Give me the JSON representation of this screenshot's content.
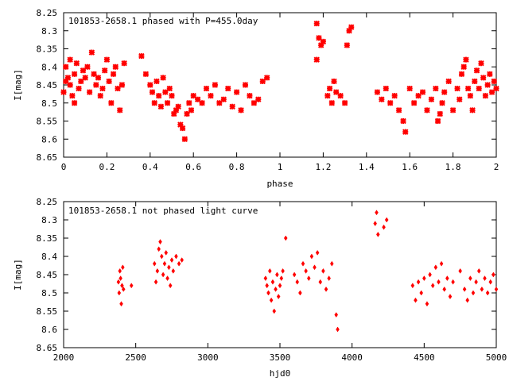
{
  "chart_data": [
    {
      "type": "scatter",
      "title": "101853-2658.1 phased with P=455.0day",
      "xlabel": "phase",
      "ylabel": "I[mag]",
      "xlim": [
        0,
        2
      ],
      "ylim": [
        8.25,
        8.65
      ],
      "y_inverted": true,
      "grid": false,
      "marker_color": "#ff0000",
      "x_ticks": [
        0,
        0.2,
        0.4,
        0.6,
        0.8,
        1,
        1.2,
        1.4,
        1.6,
        1.8,
        2
      ],
      "x_tick_labels": [
        "0",
        "0.2",
        "0.4",
        "0.6",
        "0.8",
        "1",
        "1.2",
        "1.4",
        "1.6",
        "1.8",
        "2"
      ],
      "y_ticks": [
        8.25,
        8.3,
        8.35,
        8.4,
        8.45,
        8.5,
        8.55,
        8.6,
        8.65
      ],
      "y_tick_labels": [
        "8.25",
        "8.3",
        "8.35",
        "8.4",
        "8.45",
        "8.5",
        "8.55",
        "8.6",
        "8.65"
      ],
      "series": [
        {
          "points": [
            [
              0.0,
              8.47
            ],
            [
              0.01,
              8.44
            ],
            [
              0.01,
              8.4
            ],
            [
              0.02,
              8.43
            ],
            [
              0.03,
              8.38
            ],
            [
              0.03,
              8.45
            ],
            [
              0.04,
              8.48
            ],
            [
              0.05,
              8.42
            ],
            [
              0.05,
              8.5
            ],
            [
              0.06,
              8.39
            ],
            [
              0.07,
              8.46
            ],
            [
              0.08,
              8.44
            ],
            [
              0.09,
              8.41
            ],
            [
              0.1,
              8.43
            ],
            [
              0.11,
              8.4
            ],
            [
              0.12,
              8.47
            ],
            [
              0.13,
              8.36
            ],
            [
              0.14,
              8.42
            ],
            [
              0.15,
              8.45
            ],
            [
              0.16,
              8.43
            ],
            [
              0.17,
              8.48
            ],
            [
              0.18,
              8.46
            ],
            [
              0.19,
              8.41
            ],
            [
              0.2,
              8.38
            ],
            [
              0.21,
              8.44
            ],
            [
              0.22,
              8.5
            ],
            [
              0.23,
              8.42
            ],
            [
              0.24,
              8.4
            ],
            [
              0.25,
              8.46
            ],
            [
              0.26,
              8.52
            ],
            [
              0.27,
              8.45
            ],
            [
              0.28,
              8.39
            ],
            [
              0.36,
              8.37
            ],
            [
              0.38,
              8.42
            ],
            [
              0.4,
              8.45
            ],
            [
              0.41,
              8.47
            ],
            [
              0.42,
              8.5
            ],
            [
              0.43,
              8.44
            ],
            [
              0.44,
              8.48
            ],
            [
              0.45,
              8.51
            ],
            [
              0.46,
              8.43
            ],
            [
              0.47,
              8.47
            ],
            [
              0.48,
              8.5
            ],
            [
              0.49,
              8.46
            ],
            [
              0.5,
              8.48
            ],
            [
              0.51,
              8.53
            ],
            [
              0.52,
              8.52
            ],
            [
              0.53,
              8.51
            ],
            [
              0.54,
              8.56
            ],
            [
              0.55,
              8.57
            ],
            [
              0.56,
              8.6
            ],
            [
              0.57,
              8.53
            ],
            [
              0.58,
              8.5
            ],
            [
              0.59,
              8.52
            ],
            [
              0.6,
              8.48
            ],
            [
              0.62,
              8.49
            ],
            [
              0.64,
              8.5
            ],
            [
              0.66,
              8.46
            ],
            [
              0.68,
              8.48
            ],
            [
              0.7,
              8.45
            ],
            [
              0.72,
              8.5
            ],
            [
              0.74,
              8.49
            ],
            [
              0.76,
              8.46
            ],
            [
              0.78,
              8.51
            ],
            [
              0.8,
              8.47
            ],
            [
              0.82,
              8.52
            ],
            [
              0.84,
              8.45
            ],
            [
              0.86,
              8.48
            ],
            [
              0.88,
              8.5
            ],
            [
              0.9,
              8.49
            ],
            [
              0.92,
              8.44
            ],
            [
              0.94,
              8.43
            ],
            [
              1.17,
              8.28
            ],
            [
              1.17,
              8.38
            ],
            [
              1.18,
              8.32
            ],
            [
              1.19,
              8.34
            ],
            [
              1.2,
              8.33
            ],
            [
              1.22,
              8.48
            ],
            [
              1.23,
              8.46
            ],
            [
              1.24,
              8.5
            ],
            [
              1.25,
              8.44
            ],
            [
              1.26,
              8.47
            ],
            [
              1.28,
              8.48
            ],
            [
              1.3,
              8.5
            ],
            [
              1.31,
              8.34
            ],
            [
              1.32,
              8.3
            ],
            [
              1.33,
              8.29
            ],
            [
              1.45,
              8.47
            ],
            [
              1.47,
              8.49
            ],
            [
              1.49,
              8.46
            ],
            [
              1.51,
              8.5
            ],
            [
              1.53,
              8.48
            ],
            [
              1.55,
              8.52
            ],
            [
              1.57,
              8.55
            ],
            [
              1.58,
              8.58
            ],
            [
              1.6,
              8.46
            ],
            [
              1.62,
              8.5
            ],
            [
              1.64,
              8.48
            ],
            [
              1.66,
              8.47
            ],
            [
              1.68,
              8.52
            ],
            [
              1.7,
              8.49
            ],
            [
              1.72,
              8.46
            ],
            [
              1.73,
              8.55
            ],
            [
              1.74,
              8.53
            ],
            [
              1.75,
              8.5
            ],
            [
              1.76,
              8.47
            ],
            [
              1.78,
              8.44
            ],
            [
              1.8,
              8.52
            ],
            [
              1.82,
              8.46
            ],
            [
              1.83,
              8.49
            ],
            [
              1.84,
              8.42
            ],
            [
              1.85,
              8.4
            ],
            [
              1.86,
              8.38
            ],
            [
              1.87,
              8.46
            ],
            [
              1.88,
              8.48
            ],
            [
              1.89,
              8.52
            ],
            [
              1.9,
              8.44
            ],
            [
              1.91,
              8.41
            ],
            [
              1.92,
              8.46
            ],
            [
              1.93,
              8.39
            ],
            [
              1.94,
              8.43
            ],
            [
              1.95,
              8.48
            ],
            [
              1.96,
              8.45
            ],
            [
              1.97,
              8.42
            ],
            [
              1.98,
              8.47
            ],
            [
              1.99,
              8.44
            ],
            [
              2.0,
              8.46
            ]
          ]
        }
      ]
    },
    {
      "type": "scatter",
      "title": "101853-2658.1 not phased light curve",
      "xlabel": "hjd0",
      "ylabel": "I[mag]",
      "xlim": [
        2000,
        5000
      ],
      "ylim": [
        8.25,
        8.65
      ],
      "y_inverted": true,
      "grid": false,
      "marker_color": "#ff0000",
      "x_ticks": [
        2000,
        2500,
        3000,
        3500,
        4000,
        4500,
        5000
      ],
      "x_tick_labels": [
        "2000",
        "2500",
        "3000",
        "3500",
        "4000",
        "4500",
        "5000"
      ],
      "y_ticks": [
        8.25,
        8.3,
        8.35,
        8.4,
        8.45,
        8.5,
        8.55,
        8.6,
        8.65
      ],
      "y_tick_labels": [
        "8.25",
        "8.3",
        "8.35",
        "8.4",
        "8.45",
        "8.5",
        "8.55",
        "8.6",
        "8.65"
      ],
      "series": [
        {
          "points": [
            [
              2380,
              8.47
            ],
            [
              2385,
              8.5
            ],
            [
              2390,
              8.44
            ],
            [
              2395,
              8.46
            ],
            [
              2400,
              8.53
            ],
            [
              2405,
              8.48
            ],
            [
              2410,
              8.43
            ],
            [
              2415,
              8.49
            ],
            [
              2470,
              8.48
            ],
            [
              2630,
              8.42
            ],
            [
              2640,
              8.47
            ],
            [
              2650,
              8.44
            ],
            [
              2660,
              8.38
            ],
            [
              2670,
              8.36
            ],
            [
              2680,
              8.4
            ],
            [
              2690,
              8.45
            ],
            [
              2700,
              8.42
            ],
            [
              2710,
              8.39
            ],
            [
              2720,
              8.46
            ],
            [
              2730,
              8.43
            ],
            [
              2740,
              8.48
            ],
            [
              2750,
              8.41
            ],
            [
              2760,
              8.44
            ],
            [
              2780,
              8.4
            ],
            [
              2800,
              8.42
            ],
            [
              2820,
              8.41
            ],
            [
              3400,
              8.46
            ],
            [
              3410,
              8.48
            ],
            [
              3420,
              8.5
            ],
            [
              3430,
              8.44
            ],
            [
              3440,
              8.52
            ],
            [
              3450,
              8.47
            ],
            [
              3460,
              8.55
            ],
            [
              3470,
              8.49
            ],
            [
              3480,
              8.45
            ],
            [
              3490,
              8.51
            ],
            [
              3500,
              8.48
            ],
            [
              3510,
              8.46
            ],
            [
              3520,
              8.44
            ],
            [
              3540,
              8.35
            ],
            [
              3600,
              8.45
            ],
            [
              3620,
              8.47
            ],
            [
              3640,
              8.5
            ],
            [
              3660,
              8.42
            ],
            [
              3680,
              8.44
            ],
            [
              3700,
              8.46
            ],
            [
              3720,
              8.4
            ],
            [
              3740,
              8.43
            ],
            [
              3760,
              8.39
            ],
            [
              3780,
              8.47
            ],
            [
              3800,
              8.44
            ],
            [
              3820,
              8.49
            ],
            [
              3840,
              8.46
            ],
            [
              3860,
              8.42
            ],
            [
              3890,
              8.56
            ],
            [
              3900,
              8.6
            ],
            [
              4160,
              8.31
            ],
            [
              4170,
              8.28
            ],
            [
              4180,
              8.34
            ],
            [
              4220,
              8.32
            ],
            [
              4240,
              8.3
            ],
            [
              4420,
              8.48
            ],
            [
              4440,
              8.52
            ],
            [
              4460,
              8.47
            ],
            [
              4480,
              8.5
            ],
            [
              4500,
              8.46
            ],
            [
              4520,
              8.53
            ],
            [
              4540,
              8.45
            ],
            [
              4560,
              8.48
            ],
            [
              4580,
              8.43
            ],
            [
              4600,
              8.47
            ],
            [
              4620,
              8.42
            ],
            [
              4640,
              8.49
            ],
            [
              4660,
              8.46
            ],
            [
              4680,
              8.51
            ],
            [
              4700,
              8.47
            ],
            [
              4750,
              8.44
            ],
            [
              4780,
              8.49
            ],
            [
              4800,
              8.52
            ],
            [
              4820,
              8.46
            ],
            [
              4840,
              8.5
            ],
            [
              4860,
              8.47
            ],
            [
              4880,
              8.44
            ],
            [
              4900,
              8.49
            ],
            [
              4920,
              8.46
            ],
            [
              4940,
              8.5
            ],
            [
              4960,
              8.47
            ],
            [
              4980,
              8.45
            ],
            [
              5000,
              8.49
            ]
          ]
        }
      ]
    }
  ]
}
